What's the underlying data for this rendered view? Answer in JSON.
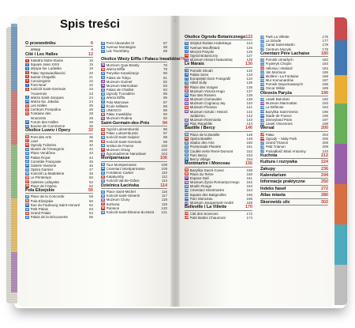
{
  "title": "Spis treści",
  "colors": {
    "blue": "#2e6fb5",
    "red": "#c0392b",
    "green": "#2e8b3e",
    "purple": "#7b3f98",
    "black": "#222222",
    "gray": "#8a8a8a",
    "page_number": "#c0392b"
  },
  "columns": [
    [
      {
        "section": "O przewodniku",
        "page": "6"
      },
      {
        "b": "",
        "c": "",
        "t": "Wstęp",
        "p": "8"
      },
      {
        "section": "Cité i Les Halles",
        "page": "12"
      },
      {
        "b": "1",
        "c": "red",
        "t": "Katedra Notre-Dame",
        "p": "16"
      },
      {
        "b": "2",
        "c": "blue",
        "t": "Square Jean XXIII",
        "p": "19"
      },
      {
        "b": "3",
        "c": "blue",
        "t": "Wyspa św. Ludwika",
        "p": "19"
      },
      {
        "b": "4",
        "c": "red",
        "t": "Pałac Sprawiedliwości",
        "p": "20"
      },
      {
        "b": "5",
        "c": "red",
        "t": "Sainte-Chapelle",
        "p": "21"
      },
      {
        "b": "6",
        "c": "red",
        "t": "Conciergerie",
        "p": "22"
      },
      {
        "b": "7",
        "c": "blue",
        "t": "Pont Neuf",
        "p": "22"
      },
      {
        "b": "8",
        "c": "red",
        "t": "Kościół Saint-Germain",
        "p": "23"
      },
      {
        "b": "",
        "c": "",
        "t": "l'Auxerrois",
        "p": "23"
      },
      {
        "b": "9",
        "c": "blue",
        "t": "Wieża Saint-Jacques",
        "p": "24"
      },
      {
        "b": "10",
        "c": "blue",
        "t": "Wieża św. Jakuba",
        "p": "24"
      },
      {
        "b": "11",
        "c": "red",
        "t": "Les Halles",
        "p": "25"
      },
      {
        "b": "12",
        "c": "red",
        "t": "Centrum Pompidou",
        "p": "26"
      },
      {
        "b": "13",
        "c": "red",
        "t": "Fontaine des",
        "p": "28"
      },
      {
        "b": "",
        "c": "",
        "t": "Innocents",
        "p": "28"
      },
      {
        "b": "14",
        "c": "blue",
        "t": "Forum des Halles",
        "p": "29"
      },
      {
        "b": "15",
        "c": "blue",
        "t": "Bourse de Commerce",
        "p": "30"
      },
      {
        "section": "Okolice Luwru i Opery",
        "page": "32"
      },
      {
        "b": "16",
        "c": "red",
        "t": "Pont des Arts",
        "p": "35"
      },
      {
        "b": "17",
        "c": "red",
        "t": "Luwr",
        "p": "36"
      },
      {
        "b": "18",
        "c": "red",
        "t": "Ogrody Tuileries",
        "p": "40"
      },
      {
        "b": "19",
        "c": "blue",
        "t": "Musée de l'Orangerie",
        "p": "42"
      },
      {
        "b": "20",
        "c": "blue",
        "t": "Place Vendôme",
        "p": "43"
      },
      {
        "b": "21",
        "c": "blue",
        "t": "Palais Royal",
        "p": "44"
      },
      {
        "b": "22",
        "c": "blue",
        "t": "Comédie Française",
        "p": "45"
      },
      {
        "b": "23",
        "c": "blue",
        "t": "Galerie Vivienne",
        "p": "46"
      },
      {
        "b": "24",
        "c": "blue",
        "t": "Opéra Garnier",
        "p": "47"
      },
      {
        "b": "25",
        "c": "blue",
        "t": "Kościół La Madeleine",
        "p": "48"
      },
      {
        "b": "26",
        "c": "red",
        "t": "Le Printemps",
        "p": "50"
      },
      {
        "b": "27",
        "c": "red",
        "t": "Galeries Lafayette",
        "p": "52"
      },
      {
        "b": "28",
        "c": "red",
        "t": "Place de l'Opéra",
        "p": "52"
      },
      {
        "section": "Pola Elizejskie",
        "page": "56"
      },
      {
        "b": "29",
        "c": "blue",
        "t": "Place de la Concorde",
        "p": "58"
      },
      {
        "b": "30",
        "c": "red",
        "t": "Pola Elizejskie",
        "p": "60"
      },
      {
        "b": "31",
        "c": "blue",
        "t": "Rue du Faubourg Saint-Honoré",
        "p": "62"
      },
      {
        "b": "32",
        "c": "blue",
        "t": "Petit Palais",
        "p": "63"
      },
      {
        "b": "33",
        "c": "red",
        "t": "Grand Palais",
        "p": "64"
      },
      {
        "b": "34",
        "c": "blue",
        "t": "Palais de la Découverte",
        "p": "66"
      }
    ],
    [
      {
        "b": "35",
        "c": "blue",
        "t": "Pont Alexandre III",
        "p": "67"
      },
      {
        "b": "36",
        "c": "blue",
        "t": "Avenue Montaigne",
        "p": "68"
      },
      {
        "b": "37",
        "c": "blue",
        "t": "Łuk Triumfalny",
        "p": "69"
      },
      {
        "gap": true
      },
      {
        "section": "Okolice Wieży Eiffla i Pałacu Inwalidów",
        "page": "74"
      },
      {
        "b": "38",
        "c": "purple",
        "t": "Muzeum Quai Branly",
        "p": "76"
      },
      {
        "b": "39",
        "c": "red",
        "t": "Wieża Eiffla",
        "p": "78"
      },
      {
        "b": "40",
        "c": "blue",
        "t": "Paryskie Kanalizacje",
        "p": "80"
      },
      {
        "b": "41",
        "c": "blue",
        "t": "Palais de Tokyo",
        "p": "81"
      },
      {
        "b": "42",
        "c": "purple",
        "t": "Muzeum Guimet",
        "p": "82"
      },
      {
        "b": "43",
        "c": "purple",
        "t": "Muzeum Marmottan",
        "p": "83"
      },
      {
        "b": "44",
        "c": "blue",
        "t": "Palais de Chaillot",
        "p": "84"
      },
      {
        "b": "45",
        "c": "blue",
        "t": "Ogrody Trocadéro",
        "p": "85"
      },
      {
        "b": "46",
        "c": "blue",
        "t": "Wieża Eiffla",
        "p": "86"
      },
      {
        "b": "47",
        "c": "blue",
        "t": "Pola Marsowe",
        "p": "87"
      },
      {
        "b": "48",
        "c": "blue",
        "t": "École Militaire",
        "p": "88"
      },
      {
        "b": "49",
        "c": "blue",
        "t": "UNESCO",
        "p": "89"
      },
      {
        "b": "50",
        "c": "red",
        "t": "Pałac Inwalidów",
        "p": "90"
      },
      {
        "b": "51",
        "c": "purple",
        "t": "Muzeum Rodina",
        "p": "92"
      },
      {
        "section": "Saint-Germain-des-Prés",
        "page": "94"
      },
      {
        "b": "52",
        "c": "red",
        "t": "Ogród Luksemburski",
        "p": "96"
      },
      {
        "b": "53",
        "c": "red",
        "t": "Pałac Luksemburski",
        "p": "97"
      },
      {
        "b": "54",
        "c": "blue",
        "t": "Kościół Saint-Sulpice",
        "p": "98"
      },
      {
        "b": "55",
        "c": "red",
        "t": "Kościół Saint-Germain",
        "p": "99"
      },
      {
        "b": "56",
        "c": "blue",
        "t": "Institut de France",
        "p": "100"
      },
      {
        "b": "57",
        "c": "red",
        "t": "Muzeum Orsay",
        "p": "102"
      },
      {
        "b": "58",
        "c": "purple",
        "t": "Zgromadzenie Narodowe",
        "p": "104"
      },
      {
        "section": "Montparnasse",
        "page": "106"
      },
      {
        "b": "59",
        "c": "blue",
        "t": "Tour Montparnasse",
        "p": "108"
      },
      {
        "b": "60",
        "c": "blue",
        "t": "Cmentarz Montparnasse",
        "p": "109"
      },
      {
        "b": "61",
        "c": "blue",
        "t": "Fondation Cartier",
        "p": "110"
      },
      {
        "b": "62",
        "c": "red",
        "t": "Katakumby",
        "p": "112"
      },
      {
        "b": "63",
        "c": "blue",
        "t": "Kościół Val-de-Grâce",
        "p": "113"
      },
      {
        "section": "Dzielnica Łacińska",
        "page": "114"
      },
      {
        "b": "64",
        "c": "blue",
        "t": "Place Saint-Michel",
        "p": "116"
      },
      {
        "b": "65",
        "c": "blue",
        "t": "Kościół Saint-Séverin",
        "p": "117"
      },
      {
        "b": "66",
        "c": "purple",
        "t": "Muzeum Cluny",
        "p": "118"
      },
      {
        "b": "67",
        "c": "red",
        "t": "Sorbona",
        "p": "119"
      },
      {
        "b": "68",
        "c": "red",
        "t": "Panteon",
        "p": "120"
      },
      {
        "b": "69",
        "c": "blue",
        "t": "Kościół Saint-Étienne-du-Mont",
        "p": "121"
      }
    ],
    [
      {
        "section": "Okolice Ogrodu Botanicznego",
        "page": "122"
      },
      {
        "b": "70",
        "c": "blue",
        "t": "Instytut Świata Arabskiego",
        "p": "124"
      },
      {
        "b": "71",
        "c": "blue",
        "t": "Avenue Mouffetard",
        "p": "125"
      },
      {
        "b": "72",
        "c": "blue",
        "t": "Meczet Paryski",
        "p": "126"
      },
      {
        "b": "73",
        "c": "red",
        "t": "Ogród Botaniczny",
        "p": "127"
      },
      {
        "b": "74",
        "c": "purple",
        "t": "Muzeum Historii Naturalnej",
        "p": "128"
      },
      {
        "section": "Le Marais",
        "page": "130"
      },
      {
        "b": "75",
        "c": "blue",
        "t": "Pomnik Shoah",
        "p": "132"
      },
      {
        "b": "76",
        "c": "blue",
        "t": "Palais Sens",
        "p": "133"
      },
      {
        "b": "77",
        "c": "blue",
        "t": "Europejski Dom Fotografii",
        "p": "134"
      },
      {
        "b": "78",
        "c": "blue",
        "t": "Hôtel Sully",
        "p": "135"
      },
      {
        "b": "79",
        "c": "red",
        "t": "Place des Vosges",
        "p": "136"
      },
      {
        "b": "80",
        "c": "purple",
        "t": "Muzeum Victora Hugo",
        "p": "137"
      },
      {
        "b": "81",
        "c": "blue",
        "t": "Rue des Rosiers",
        "p": "138"
      },
      {
        "b": "82",
        "c": "purple",
        "t": "Muzeum Carnavalet",
        "p": "139"
      },
      {
        "b": "83",
        "c": "purple",
        "t": "Muzeum Cognacq-Jay",
        "p": "140"
      },
      {
        "b": "84",
        "c": "red",
        "t": "Muzeum Picassa",
        "p": "141"
      },
      {
        "b": "85",
        "c": "purple",
        "t": "Muzeum Sztuki i Historii",
        "p": "142"
      },
      {
        "b": "",
        "c": "",
        "t": "Judaizmu",
        "p": "142"
      },
      {
        "b": "86",
        "c": "purple",
        "t": "Muzeum Rzemiosła",
        "p": "143"
      },
      {
        "b": "87",
        "c": "blue",
        "t": "Plac Republiki",
        "p": "144"
      },
      {
        "section": "Bastille i Bercy",
        "page": "146"
      },
      {
        "b": "88",
        "c": "blue",
        "t": "Place de la Bastille",
        "p": "148"
      },
      {
        "b": "89",
        "c": "red",
        "t": "Opéra Bastille",
        "p": "149"
      },
      {
        "b": "90",
        "c": "blue",
        "t": "Viaduc des Arts",
        "p": "150"
      },
      {
        "b": "91",
        "c": "blue",
        "t": "Promenade Plantée",
        "p": "151"
      },
      {
        "b": "92",
        "c": "blue",
        "t": "Coulée verte René-Dumont",
        "p": "152"
      },
      {
        "b": "93",
        "c": "blue",
        "t": "Parc Bercy",
        "p": "153"
      },
      {
        "b": "94",
        "c": "blue",
        "t": "Bercy Village",
        "p": "154"
      },
      {
        "section": "Montmartre i Monceau",
        "page": "156"
      },
      {
        "b": "95",
        "c": "red",
        "t": "Bazylika Sacré-Coeur",
        "p": "158"
      },
      {
        "b": "96",
        "c": "red",
        "t": "Place du Tertre",
        "p": "160"
      },
      {
        "b": "97",
        "c": "purple",
        "t": "Espace Dalí",
        "p": "161"
      },
      {
        "b": "98",
        "c": "purple",
        "t": "Muzeum Życia Romantycznego",
        "p": "162"
      },
      {
        "b": "99",
        "c": "blue",
        "t": "Moulin Rouge",
        "p": "163"
      },
      {
        "b": "100",
        "c": "blue",
        "t": "Cmentarz Montmartre",
        "p": "164"
      },
      {
        "b": "101",
        "c": "blue",
        "t": "Square des Batignolles",
        "p": "165"
      },
      {
        "b": "102",
        "c": "blue",
        "t": "Parc Monceau",
        "p": "166"
      },
      {
        "b": "103",
        "c": "purple",
        "t": "Muzeum Jacquemart-André",
        "p": "168"
      },
      {
        "section": "Belleville i La Villette",
        "page": "170"
      },
      {
        "b": "104",
        "c": "red",
        "t": "Cité des Sciences",
        "p": "172"
      },
      {
        "b": "105",
        "c": "red",
        "t": "Park Buttes Chaumont",
        "p": "174"
      }
    ],
    [
      {
        "b": "106",
        "c": "blue",
        "t": "Park La Villette",
        "p": "176"
      },
      {
        "b": "107",
        "c": "blue",
        "t": "La Géode",
        "p": "177"
      },
      {
        "b": "108",
        "c": "blue",
        "t": "Canal Saint-Martin",
        "p": "178"
      },
      {
        "b": "109",
        "c": "blue",
        "t": "Centrum Muzyki",
        "p": "179"
      },
      {
        "section": "Cmentarz Père Lachaise",
        "page": "180"
      },
      {
        "b": "110",
        "c": "blue",
        "t": "Pomnik Umarłych",
        "p": "182"
      },
      {
        "b": "111",
        "c": "blue",
        "t": "Fryderyk Chopin",
        "p": "183"
      },
      {
        "b": "112",
        "c": "red",
        "t": "Héloïsa i Abelard",
        "p": "184"
      },
      {
        "b": "113",
        "c": "blue",
        "t": "Jim Morrison",
        "p": "185"
      },
      {
        "b": "114",
        "c": "blue",
        "t": "Molière i La Fontaine",
        "p": "186"
      },
      {
        "b": "115",
        "c": "blue",
        "t": "Mur Komunardów",
        "p": "187"
      },
      {
        "b": "116",
        "c": "blue",
        "t": "Pomnik Deportowanych",
        "p": "188"
      },
      {
        "b": "117",
        "c": "blue",
        "t": "Oscar Wilde",
        "p": "189"
      },
      {
        "section": "Obrzeża Paryża",
        "page": "190"
      },
      {
        "b": "118",
        "c": "blue",
        "t": "Lasek Buloński",
        "p": "192"
      },
      {
        "b": "119",
        "c": "purple",
        "t": "Muzeum Marmottan",
        "p": "193"
      },
      {
        "b": "120",
        "c": "blue",
        "t": "La Défense",
        "p": "194"
      },
      {
        "b": "121",
        "c": "blue",
        "t": "Bazylika Saint-Denis",
        "p": "195"
      },
      {
        "b": "122",
        "c": "blue",
        "t": "Stade de France",
        "p": "196"
      },
      {
        "b": "123",
        "c": "blue",
        "t": "Disneyland Paris",
        "p": "197"
      },
      {
        "b": "124",
        "c": "blue",
        "t": "Lasek Vincennes",
        "p": "198"
      },
      {
        "section": "Wersal",
        "page": "200"
      },
      {
        "b": "125",
        "c": "red",
        "t": "Pałac",
        "p": "204"
      },
      {
        "b": "126",
        "c": "red",
        "t": "Ogrody – Mały Park",
        "p": "206"
      },
      {
        "b": "127",
        "c": "blue",
        "t": "Grand Trianon",
        "p": "208"
      },
      {
        "b": "128",
        "c": "blue",
        "t": "Petit Trianon",
        "p": "209"
      },
      {
        "b": "129",
        "c": "blue",
        "t": "Posiadłość Marii Antoniny",
        "p": "210"
      },
      {
        "section": "Kuchnia",
        "page": "212"
      },
      {
        "section": "Kultura i rozrywka",
        "page": "224"
      },
      {
        "section": "Zakupy",
        "page": "236"
      },
      {
        "section": "Kalendarium",
        "page": "244"
      },
      {
        "section": "Informacje praktyczne",
        "page": "250"
      },
      {
        "section": "Indeks haseł",
        "page": "272"
      },
      {
        "section": "Atlas miasta",
        "page": "280"
      },
      {
        "section": "Skorowidz ulic",
        "page": "302"
      }
    ]
  ]
}
